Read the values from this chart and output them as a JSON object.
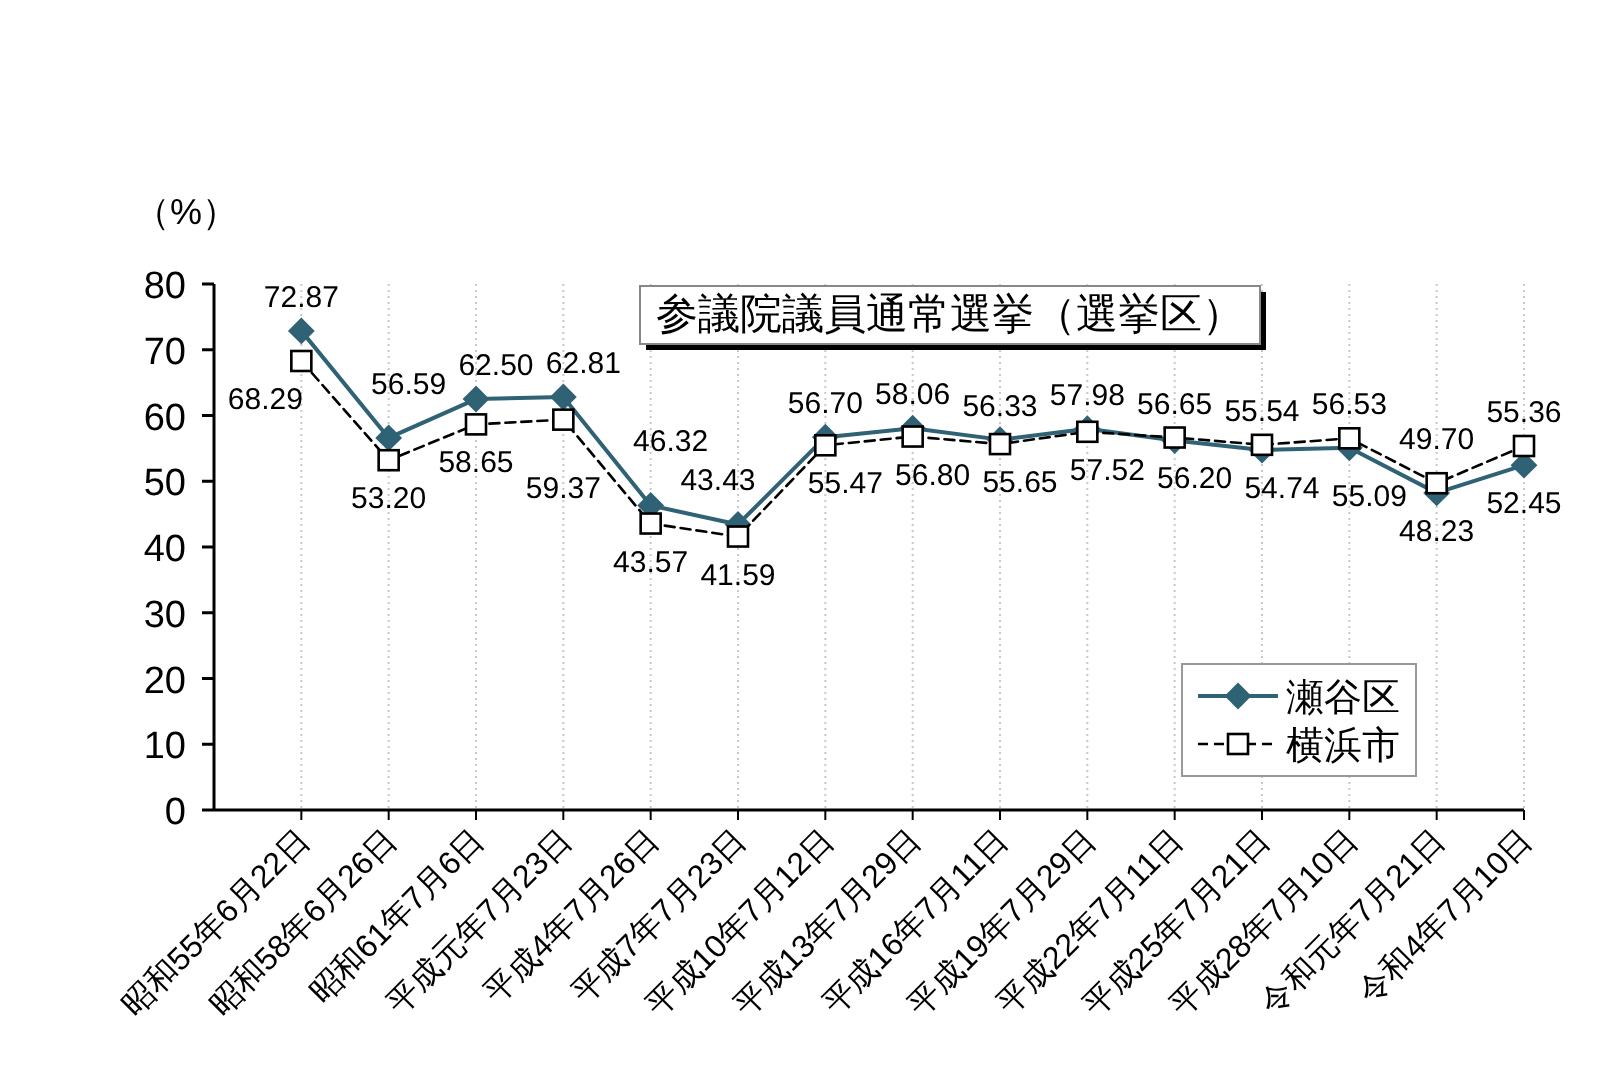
{
  "chart_data": {
    "type": "line",
    "title": "参議院議員通常選挙（選挙区）",
    "ylabel": "（%）",
    "categories": [
      "昭和55年6月22日",
      "昭和58年6月26日",
      "昭和61年7月6日",
      "平成元年7月23日",
      "平成4年7月26日",
      "平成7年7月23日",
      "平成10年7月12日",
      "平成13年7月29日",
      "平成16年7月11日",
      "平成19年7月29日",
      "平成22年7月11日",
      "平成25年7月21日",
      "平成28年7月10日",
      "令和元年7月21日",
      "令和4年7月10日"
    ],
    "series": [
      {
        "name": "瀬谷区",
        "color": "#2f6274",
        "marker": "diamond",
        "line_style": "solid",
        "values": [
          72.87,
          56.59,
          62.5,
          62.81,
          46.32,
          43.43,
          56.7,
          58.06,
          56.33,
          57.98,
          56.2,
          54.74,
          55.09,
          48.23,
          52.45
        ],
        "value_labels": [
          "72.87",
          "56.59",
          "62.50",
          "62.81",
          "46.32",
          "43.43",
          "56.70",
          "58.06",
          "56.33",
          "57.98",
          "56.20",
          "54.74",
          "55.09",
          "48.23",
          "52.45"
        ]
      },
      {
        "name": "横浜市",
        "color": "#000000",
        "marker": "square",
        "line_style": "dashed",
        "values": [
          68.29,
          53.2,
          58.65,
          59.37,
          43.57,
          41.59,
          55.47,
          56.8,
          55.65,
          57.52,
          56.65,
          55.54,
          56.53,
          49.7,
          55.36
        ],
        "value_labels": [
          "68.29",
          "53.20",
          "58.65",
          "59.37",
          "43.57",
          "41.59",
          "55.47",
          "56.80",
          "55.65",
          "57.52",
          "56.65",
          "55.54",
          "56.53",
          "49.70",
          "55.36"
        ]
      }
    ],
    "ylim": [
      0,
      80
    ],
    "yticks": [
      0,
      10,
      20,
      30,
      40,
      50,
      60,
      70,
      80
    ],
    "grid": "x",
    "legend": "bottom right"
  }
}
